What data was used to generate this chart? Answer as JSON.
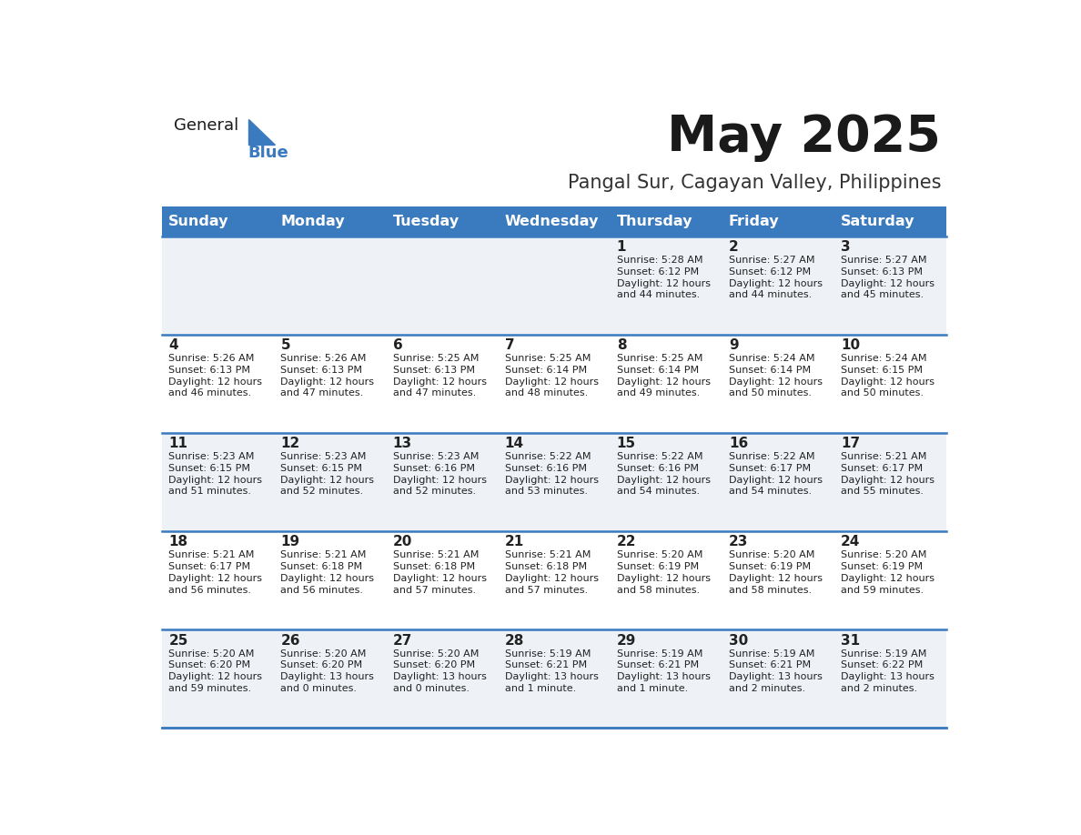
{
  "title": "May 2025",
  "subtitle": "Pangal Sur, Cagayan Valley, Philippines",
  "days_of_week": [
    "Sunday",
    "Monday",
    "Tuesday",
    "Wednesday",
    "Thursday",
    "Friday",
    "Saturday"
  ],
  "header_bg": "#3a7abf",
  "header_text": "#ffffff",
  "row_bg_odd": "#eef2f7",
  "row_bg_even": "#ffffff",
  "cell_text_color": "#222222",
  "day_num_color": "#222222",
  "border_color": "#3a7abf",
  "logo_general_color": "#1a1a1a",
  "logo_blue_color": "#3a7abf",
  "logo_triangle_color": "#3a7abf",
  "calendar_data": [
    [
      {
        "day": "",
        "sunrise": "",
        "sunset": "",
        "daylight": ""
      },
      {
        "day": "",
        "sunrise": "",
        "sunset": "",
        "daylight": ""
      },
      {
        "day": "",
        "sunrise": "",
        "sunset": "",
        "daylight": ""
      },
      {
        "day": "",
        "sunrise": "",
        "sunset": "",
        "daylight": ""
      },
      {
        "day": "1",
        "sunrise": "5:28 AM",
        "sunset": "6:12 PM",
        "daylight": "12 hours\nand 44 minutes."
      },
      {
        "day": "2",
        "sunrise": "5:27 AM",
        "sunset": "6:12 PM",
        "daylight": "12 hours\nand 44 minutes."
      },
      {
        "day": "3",
        "sunrise": "5:27 AM",
        "sunset": "6:13 PM",
        "daylight": "12 hours\nand 45 minutes."
      }
    ],
    [
      {
        "day": "4",
        "sunrise": "5:26 AM",
        "sunset": "6:13 PM",
        "daylight": "12 hours\nand 46 minutes."
      },
      {
        "day": "5",
        "sunrise": "5:26 AM",
        "sunset": "6:13 PM",
        "daylight": "12 hours\nand 47 minutes."
      },
      {
        "day": "6",
        "sunrise": "5:25 AM",
        "sunset": "6:13 PM",
        "daylight": "12 hours\nand 47 minutes."
      },
      {
        "day": "7",
        "sunrise": "5:25 AM",
        "sunset": "6:14 PM",
        "daylight": "12 hours\nand 48 minutes."
      },
      {
        "day": "8",
        "sunrise": "5:25 AM",
        "sunset": "6:14 PM",
        "daylight": "12 hours\nand 49 minutes."
      },
      {
        "day": "9",
        "sunrise": "5:24 AM",
        "sunset": "6:14 PM",
        "daylight": "12 hours\nand 50 minutes."
      },
      {
        "day": "10",
        "sunrise": "5:24 AM",
        "sunset": "6:15 PM",
        "daylight": "12 hours\nand 50 minutes."
      }
    ],
    [
      {
        "day": "11",
        "sunrise": "5:23 AM",
        "sunset": "6:15 PM",
        "daylight": "12 hours\nand 51 minutes."
      },
      {
        "day": "12",
        "sunrise": "5:23 AM",
        "sunset": "6:15 PM",
        "daylight": "12 hours\nand 52 minutes."
      },
      {
        "day": "13",
        "sunrise": "5:23 AM",
        "sunset": "6:16 PM",
        "daylight": "12 hours\nand 52 minutes."
      },
      {
        "day": "14",
        "sunrise": "5:22 AM",
        "sunset": "6:16 PM",
        "daylight": "12 hours\nand 53 minutes."
      },
      {
        "day": "15",
        "sunrise": "5:22 AM",
        "sunset": "6:16 PM",
        "daylight": "12 hours\nand 54 minutes."
      },
      {
        "day": "16",
        "sunrise": "5:22 AM",
        "sunset": "6:17 PM",
        "daylight": "12 hours\nand 54 minutes."
      },
      {
        "day": "17",
        "sunrise": "5:21 AM",
        "sunset": "6:17 PM",
        "daylight": "12 hours\nand 55 minutes."
      }
    ],
    [
      {
        "day": "18",
        "sunrise": "5:21 AM",
        "sunset": "6:17 PM",
        "daylight": "12 hours\nand 56 minutes."
      },
      {
        "day": "19",
        "sunrise": "5:21 AM",
        "sunset": "6:18 PM",
        "daylight": "12 hours\nand 56 minutes."
      },
      {
        "day": "20",
        "sunrise": "5:21 AM",
        "sunset": "6:18 PM",
        "daylight": "12 hours\nand 57 minutes."
      },
      {
        "day": "21",
        "sunrise": "5:21 AM",
        "sunset": "6:18 PM",
        "daylight": "12 hours\nand 57 minutes."
      },
      {
        "day": "22",
        "sunrise": "5:20 AM",
        "sunset": "6:19 PM",
        "daylight": "12 hours\nand 58 minutes."
      },
      {
        "day": "23",
        "sunrise": "5:20 AM",
        "sunset": "6:19 PM",
        "daylight": "12 hours\nand 58 minutes."
      },
      {
        "day": "24",
        "sunrise": "5:20 AM",
        "sunset": "6:19 PM",
        "daylight": "12 hours\nand 59 minutes."
      }
    ],
    [
      {
        "day": "25",
        "sunrise": "5:20 AM",
        "sunset": "6:20 PM",
        "daylight": "12 hours\nand 59 minutes."
      },
      {
        "day": "26",
        "sunrise": "5:20 AM",
        "sunset": "6:20 PM",
        "daylight": "13 hours\nand 0 minutes."
      },
      {
        "day": "27",
        "sunrise": "5:20 AM",
        "sunset": "6:20 PM",
        "daylight": "13 hours\nand 0 minutes."
      },
      {
        "day": "28",
        "sunrise": "5:19 AM",
        "sunset": "6:21 PM",
        "daylight": "13 hours\nand 1 minute."
      },
      {
        "day": "29",
        "sunrise": "5:19 AM",
        "sunset": "6:21 PM",
        "daylight": "13 hours\nand 1 minute."
      },
      {
        "day": "30",
        "sunrise": "5:19 AM",
        "sunset": "6:21 PM",
        "daylight": "13 hours\nand 2 minutes."
      },
      {
        "day": "31",
        "sunrise": "5:19 AM",
        "sunset": "6:22 PM",
        "daylight": "13 hours\nand 2 minutes."
      }
    ]
  ]
}
